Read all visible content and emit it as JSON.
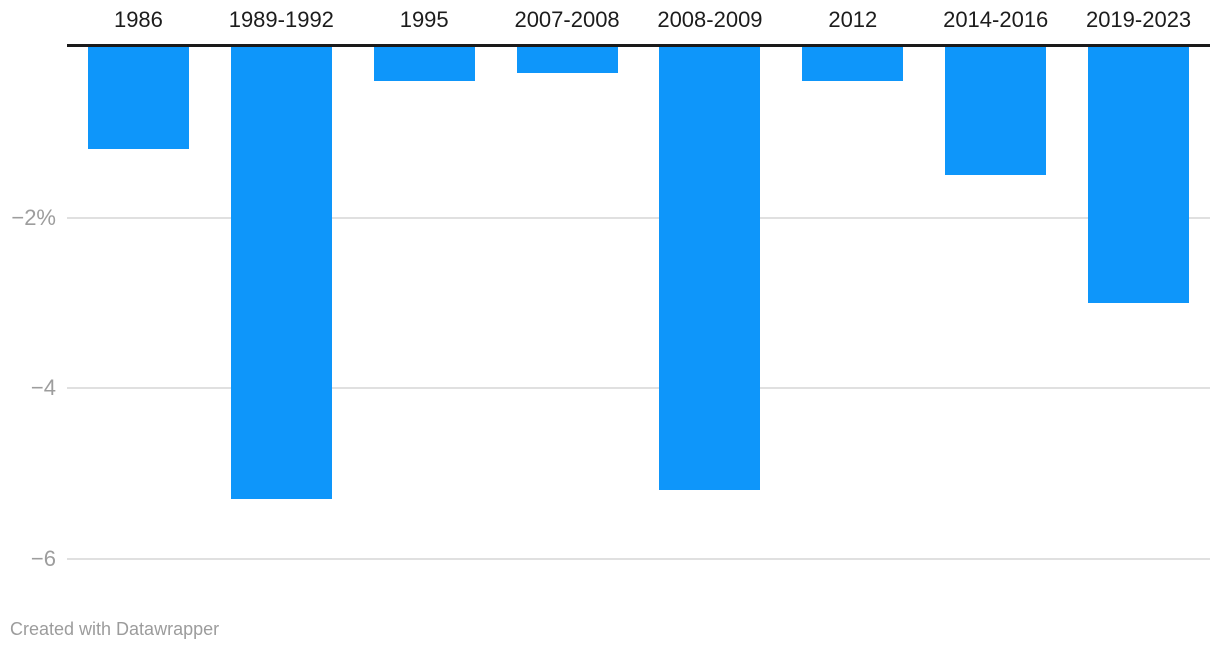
{
  "chart_data": {
    "type": "bar",
    "orientation": "vertical-negative",
    "title": "",
    "xlabel": "",
    "ylabel": "",
    "unit": "%",
    "categories": [
      "1986",
      "1989-1992",
      "1995",
      "2007-2008",
      "2008-2009",
      "2012",
      "2014-2016",
      "2019-2023"
    ],
    "values": [
      -1.2,
      -5.3,
      -0.4,
      -0.3,
      -5.2,
      -0.4,
      -1.5,
      -3.0
    ],
    "ylim": [
      -6.7,
      0
    ],
    "grid": true,
    "legend_position": "none",
    "y_ticks": [
      {
        "value": -2,
        "label": "−2%"
      },
      {
        "value": -4,
        "label": "−4"
      },
      {
        "value": -6,
        "label": "−6"
      }
    ],
    "colors": {
      "bar": "#0e96fa",
      "zero_axis_line": "#1a1a1a",
      "gridline": "#e0e0e0",
      "category_label": "#1c1c1c",
      "tick_label": "#9d9d9d",
      "footer_text": "#9c9c9c",
      "background": "#ffffff"
    }
  },
  "footer": {
    "credit": "Created with Datawrapper"
  }
}
